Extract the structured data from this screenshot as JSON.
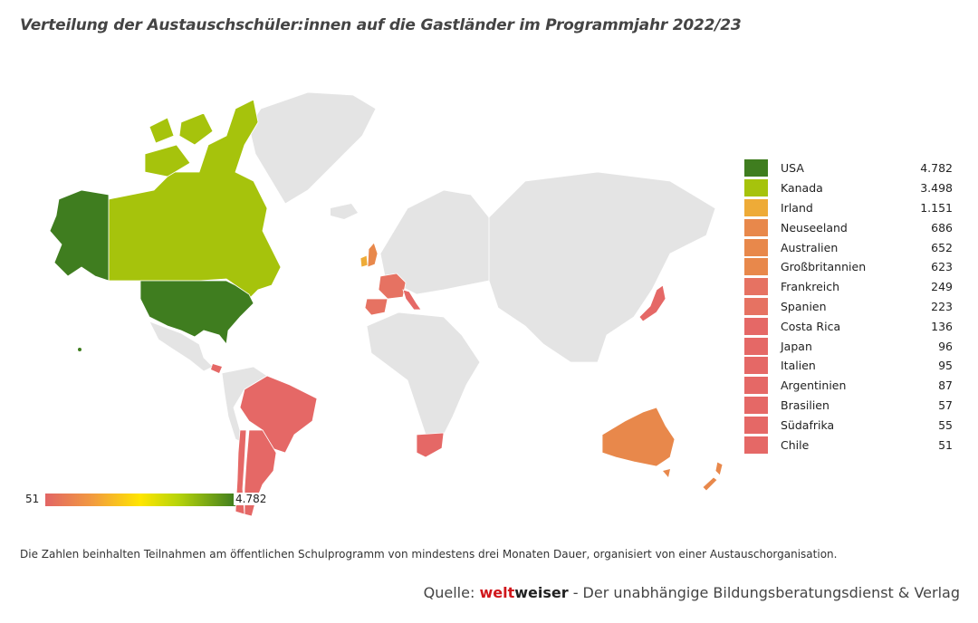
{
  "title": "Verteilung der Austauschschüler:innen auf die Gastländer im Programmjahr 2022/23",
  "legend": [
    {
      "name": "USA",
      "value": "4.782",
      "color": "#3f7d1f"
    },
    {
      "name": "Kanada",
      "value": "3.498",
      "color": "#a6c30c"
    },
    {
      "name": "Irland",
      "value": "1.151",
      "color": "#eeab37"
    },
    {
      "name": "Neuseeland",
      "value": "686",
      "color": "#e8884b"
    },
    {
      "name": "Australien",
      "value": "652",
      "color": "#e8884b"
    },
    {
      "name": "Großbritannien",
      "value": "623",
      "color": "#e8884b"
    },
    {
      "name": "Frankreich",
      "value": "249",
      "color": "#e67262"
    },
    {
      "name": "Spanien",
      "value": "223",
      "color": "#e67262"
    },
    {
      "name": "Costa Rica",
      "value": "136",
      "color": "#e56866"
    },
    {
      "name": "Japan",
      "value": "96",
      "color": "#e56866"
    },
    {
      "name": "Italien",
      "value": "95",
      "color": "#e56866"
    },
    {
      "name": "Argentinien",
      "value": "87",
      "color": "#e56866"
    },
    {
      "name": "Brasilien",
      "value": "57",
      "color": "#e56866"
    },
    {
      "name": "Südafrika",
      "value": "55",
      "color": "#e56866"
    },
    {
      "name": "Chile",
      "value": "51",
      "color": "#e56866"
    }
  ],
  "scale": {
    "min": "51",
    "max": "4.782"
  },
  "note": "Die Zahlen beinhalten Teilnahmen am öffentlichen Schulprogramm von mindestens drei Monaten Dauer, organisiert von einer Austauschorganisation.",
  "source": {
    "prefix": "Quelle: ",
    "brand1": "welt",
    "brand2": "weiser",
    "suffix": " - Der unabhängige Bildungsberatungsdienst & Verlag"
  },
  "colors": {
    "other_countries": "#e4e4e4",
    "borders": "#ffffff"
  }
}
